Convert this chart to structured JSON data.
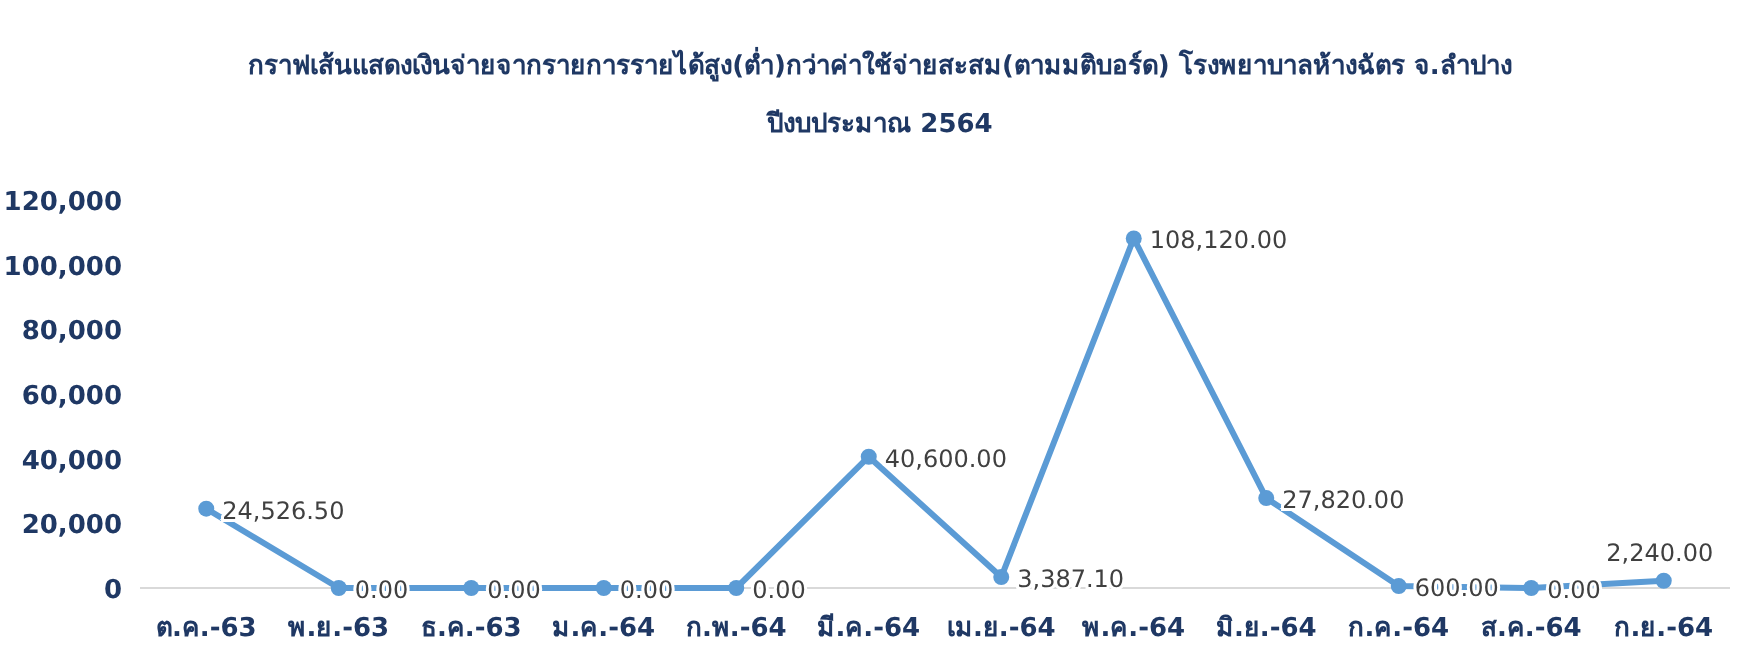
{
  "chart_data": {
    "type": "line",
    "title": "กราฟเส้นแสดงเงินจ่ายจากรายการรายได้สูง(ต่ำ)กว่าค่าใช้จ่ายสะสม(ตามมติบอร์ด) โรงพยาบาลห้างฉัตร จ.ลำปาง",
    "subtitle": "ปีงบประมาณ 2564",
    "categories": [
      "ต.ค.-63",
      "พ.ย.-63",
      "ธ.ค.-63",
      "ม.ค.-64",
      "ก.พ.-64",
      "มี.ค.-64",
      "เม.ย.-64",
      "พ.ค.-64",
      "มิ.ย.-64",
      "ก.ค.-64",
      "ส.ค.-64",
      "ก.ย.-64"
    ],
    "values": [
      24526.5,
      0,
      0,
      0,
      0,
      40600,
      3387.1,
      108120,
      27820,
      600,
      0,
      2240
    ],
    "value_labels": [
      "24,526.50",
      "0.00",
      "0.00",
      "0.00",
      "0.00",
      "40,600.00",
      "3,387.10",
      "108,120.00",
      "27,820.00",
      "600.00",
      "0.00",
      "2,240.00"
    ],
    "color": "#5b9bd5",
    "ylim": [
      0,
      120000
    ],
    "yticks": [
      0,
      {
        "value": 20000,
        "label": "20,000"
      },
      {
        "value": 40000,
        "label": "40,000"
      },
      {
        "value": 60000,
        "label": "60,000"
      },
      {
        "value": 80000,
        "label": "80,000"
      },
      {
        "value": 100000,
        "label": "100,000"
      },
      {
        "value": 120000,
        "label": "120,000"
      }
    ],
    "marker": "circle",
    "line_style": "solid",
    "grid": false
  }
}
